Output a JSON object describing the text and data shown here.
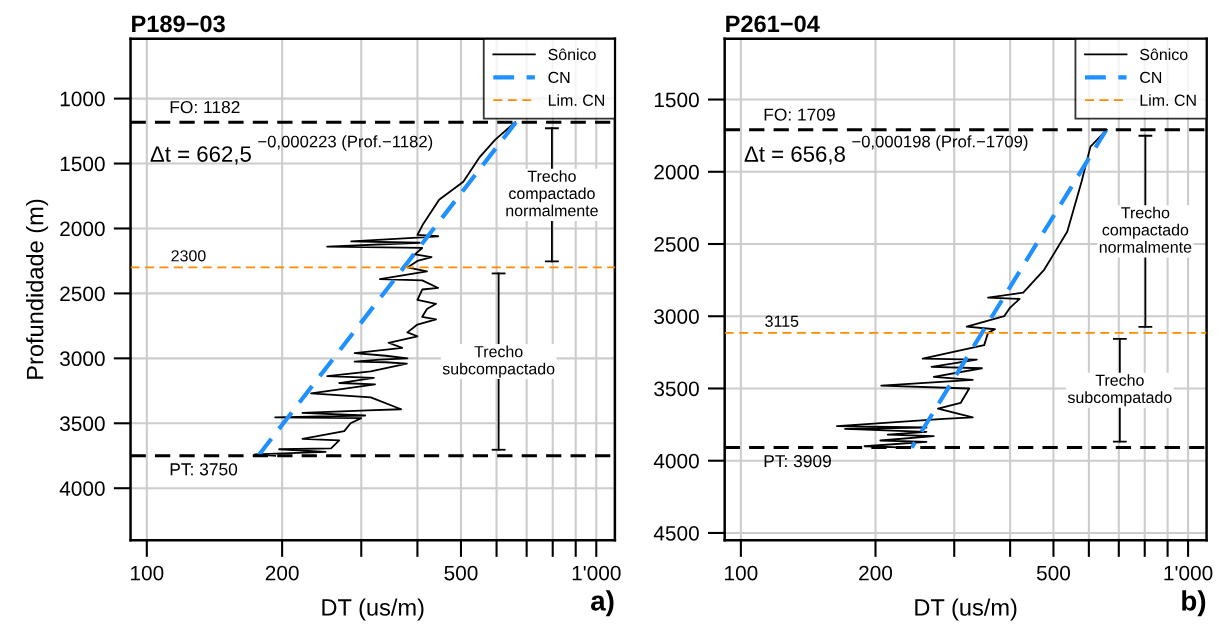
{
  "chart_data": [
    {
      "type": "line",
      "title": "P189−03",
      "xlabel": "DT (us/m)",
      "ylabel": "Profundidade (m)",
      "log": "x",
      "grid": true,
      "legend": "top right",
      "xlim": [
        92,
        1100
      ],
      "xticks": [
        100,
        200,
        {
          "value": 300,
          "label": null
        },
        {
          "value": 400,
          "label": null
        },
        500,
        {
          "value": 600,
          "label": null
        },
        {
          "value": 700,
          "label": null
        },
        {
          "value": 800,
          "label": null
        },
        {
          "value": 900,
          "label": null
        },
        {
          "value": 1000,
          "label": "1'000"
        }
      ],
      "ylim": [
        4400,
        540
      ],
      "yticks": [
        1000,
        1500,
        2000,
        2500,
        3000,
        3500,
        4000
      ],
      "series": [
        {
          "name": "Sônico",
          "color": "#000000",
          "line_style": "solid",
          "x": [
            660,
            596,
            549,
            506,
            447,
            412,
            400,
            445,
            400,
            285,
            405,
            252,
            410,
            395,
            430,
            400,
            380,
            420,
            330,
            410,
            445,
            410,
            400,
            440,
            420,
            410,
            440,
            400,
            380,
            400,
            345,
            370,
            290,
            340,
            380,
            330,
            290,
            340,
            379,
            315,
            252,
            320,
            268,
            322,
            232,
            315,
            368,
            310,
            222,
            306,
            193,
            300,
            284,
            275,
            222,
            268,
            257,
            197,
            250,
            174,
            193
          ],
          "values": [
            1182,
            1316,
            1455,
            1640,
            1779,
            1965,
            2050,
            2060,
            2070,
            2100,
            2110,
            2140,
            2150,
            2200,
            2220,
            2250,
            2300,
            2330,
            2390,
            2400,
            2458,
            2470,
            2550,
            2580,
            2620,
            2680,
            2700,
            2740,
            2800,
            2830,
            2880,
            2920,
            2960,
            2980,
            3000,
            3010,
            3025,
            3030,
            3040,
            3100,
            3137,
            3150,
            3190,
            3200,
            3270,
            3300,
            3392,
            3400,
            3420,
            3440,
            3454,
            3460,
            3500,
            3560,
            3620,
            3631,
            3693,
            3700,
            3720,
            3740,
            3750
          ]
        },
        {
          "name": "CN",
          "color": "#1e90ff",
          "line_style": "dashed",
          "x": [
            662.5,
            177
          ],
          "values": [
            1182,
            3750
          ]
        },
        {
          "name": "Lim. CN",
          "color": "#ff8c00",
          "line_style": "dashed",
          "x": [
            92,
            1100
          ],
          "values": [
            2300,
            2300
          ]
        }
      ],
      "ref_lines": [
        {
          "axis": "y",
          "value": 1182,
          "label": "FO: 1182",
          "color": "#000000",
          "line_style": "dashed"
        },
        {
          "axis": "y",
          "value": 3750,
          "label": "PT: 3750",
          "color": "#000000",
          "line_style": "dashed"
        }
      ],
      "annotations": [
        "Δt = 662,5 $^{−0,000223 (Prof.−1182)}$",
        "a)",
        {
          "text": "2300",
          "x": 113,
          "y": 2300
        },
        "Trecho\ncompactado\nnormalmente",
        "Trecho\nsubcompactado"
      ]
    },
    {
      "type": "line",
      "title": "P261−04",
      "xlabel": "DT (us/m)",
      "log": "x",
      "grid": true,
      "legend": "top right",
      "xlim": [
        92,
        1100
      ],
      "xticks": [
        100,
        200,
        {
          "value": 300,
          "label": null
        },
        {
          "value": 400,
          "label": null
        },
        500,
        {
          "value": 600,
          "label": null
        },
        {
          "value": 700,
          "label": null
        },
        {
          "value": 800,
          "label": null
        },
        {
          "value": 900,
          "label": null
        },
        {
          "value": 1000,
          "label": "1'000"
        }
      ],
      "ylim": [
        4550,
        1080
      ],
      "yticks": [
        1500,
        2000,
        2500,
        3000,
        3500,
        4000,
        4500
      ],
      "series": [
        {
          "name": "Sônico",
          "color": "#000000",
          "line_style": "solid",
          "x": [
            658,
            605,
            578,
            537,
            477,
            428,
            357,
            420,
            400,
            388,
            320,
            370,
            357,
            350,
            255,
            337,
            267,
            346,
            270,
            330,
            206,
            324,
            310,
            276,
            330,
            284,
            164,
            260,
            171,
            260,
            213,
            270,
            205,
            260,
            189,
            235
          ],
          "values": [
            1709,
            1826,
            2068,
            2414,
            2677,
            2837,
            2871,
            2880,
            2940,
            3000,
            3072,
            3090,
            3115,
            3200,
            3294,
            3300,
            3350,
            3360,
            3420,
            3440,
            3480,
            3500,
            3600,
            3640,
            3700,
            3710,
            3760,
            3770,
            3780,
            3800,
            3820,
            3830,
            3860,
            3870,
            3900,
            3909
          ]
        },
        {
          "name": "CN",
          "color": "#1e90ff",
          "line_style": "dashed",
          "x": [
            656.8,
            241
          ],
          "values": [
            1709,
            3909
          ]
        },
        {
          "name": "Lim. CN",
          "color": "#ff8c00",
          "line_style": "dashed",
          "x": [
            92,
            1100
          ],
          "values": [
            3115,
            3115
          ]
        }
      ],
      "ref_lines": [
        {
          "axis": "y",
          "value": 1709,
          "label": "FO: 1709",
          "color": "#000000",
          "line_style": "dashed"
        },
        {
          "axis": "y",
          "value": 3909,
          "label": "PT: 3909",
          "color": "#000000",
          "line_style": "dashed"
        }
      ],
      "annotations": [
        "Δt = 656,8 $^{−0,000198 (Prof.−1709)}$",
        "b)",
        {
          "text": "3115",
          "x": 113,
          "y": 3115
        },
        "Trecho\ncompactado\nnormalmente",
        "Trecho\nsubcompatado"
      ]
    }
  ]
}
